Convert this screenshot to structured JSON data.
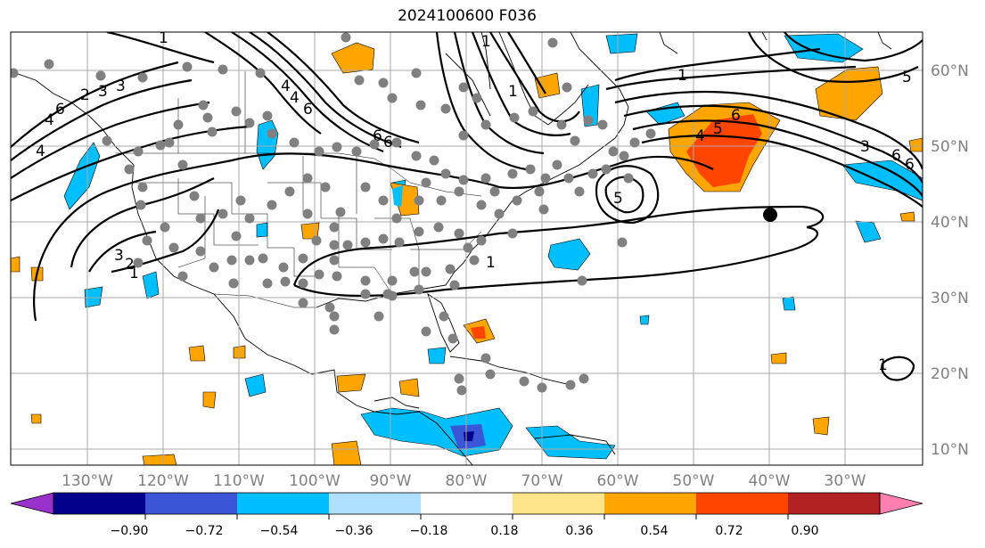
{
  "title": "2024100600 F036",
  "map": {
    "longitude_labels": [
      "130°W",
      "120°W",
      "110°W",
      "100°W",
      "90°W",
      "80°W",
      "70°W",
      "60°W",
      "50°W",
      "40°W",
      "30°W"
    ],
    "latitude_labels": [
      "60°N",
      "50°N",
      "40°N",
      "30°N",
      "20°N",
      "10°N"
    ],
    "contour_labels": [
      "3",
      "2",
      "1",
      "6",
      "4",
      "6",
      "4",
      "3",
      "1",
      "5",
      "6",
      "1",
      "6",
      "4",
      "5",
      "6",
      "1",
      "3",
      "6",
      "5",
      "4",
      "4",
      "6",
      "3",
      "2",
      "1",
      "1",
      "1"
    ],
    "colors": {
      "purple": "#9932cc",
      "navy": "#00008b",
      "blue": "#3a56d6",
      "deepskyblue": "#00bfff",
      "lightblue": "#b0e0ff",
      "white": "#ffffff",
      "khaki": "#fde68a",
      "orange": "#ffa500",
      "orangered": "#ff4500",
      "firebrick": "#b22222",
      "pink": "#ff80b0",
      "gridline": "#a9a9a9",
      "contour": "#000000",
      "marker": "#808080"
    }
  },
  "colorbar": {
    "tick_labels": [
      "−0.90",
      "−0.72",
      "−0.54",
      "−0.36",
      "−0.18",
      "0.18",
      "0.36",
      "0.54",
      "0.72",
      "0.90"
    ],
    "bins": [
      "#9932cc",
      "#00008b",
      "#3a56d6",
      "#00bfff",
      "#b0e0ff",
      "#ffffff",
      "#fde68a",
      "#ffa500",
      "#ff4500",
      "#b22222",
      "#ff80b0"
    ]
  }
}
